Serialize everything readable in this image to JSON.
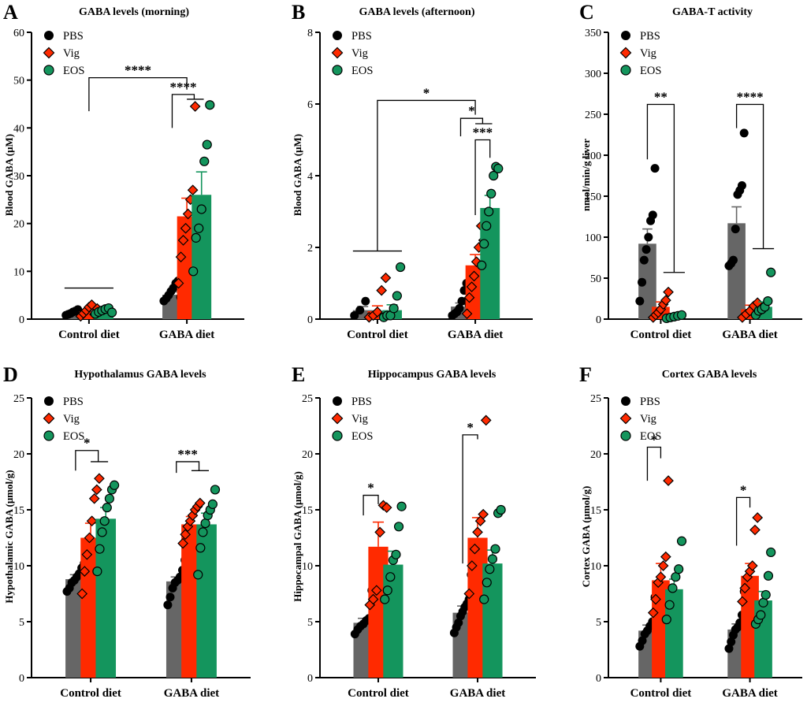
{
  "colors": {
    "PBS": "#666666",
    "Vig": "#ff2a00",
    "EOS": "#14955d",
    "PBS_marker": "#000000"
  },
  "chart_data": [
    {
      "letter": "A",
      "type": "bar",
      "title": "GABA levels (morning)",
      "ylabel": "Blood GABA (μM)",
      "ylim": [
        0,
        60
      ],
      "yticks": [
        "0",
        "10",
        "20",
        "30",
        "40",
        "50",
        "60"
      ],
      "categories": [
        "Control diet",
        "GABA diet"
      ],
      "legend": [
        {
          "label": "PBS",
          "marker": "circle",
          "key": "PBS"
        },
        {
          "label": "Vig",
          "marker": "diamond",
          "key": "Vig"
        },
        {
          "label": "EOS",
          "marker": "circle",
          "key": "EOS"
        }
      ],
      "series": [
        {
          "name": "PBS",
          "means": [
            1.2,
            5.1
          ],
          "sem": [
            0.3,
            0.6
          ],
          "points": [
            [
              0.8,
              1.0,
              1.2,
              1.5,
              1.7,
              2.0,
              1.3,
              0.9
            ],
            [
              3.8,
              4.3,
              5.0,
              5.8,
              6.5,
              7.5,
              8.0,
              4.6
            ]
          ]
        },
        {
          "name": "Vig",
          "means": [
            1.6,
            21.5
          ],
          "sem": [
            0.4,
            3.8
          ],
          "points": [
            [
              0.6,
              1.2,
              1.8,
              2.5,
              3.0,
              1.0,
              2.2
            ],
            [
              7.5,
              13,
              16.5,
              19,
              22,
              25,
              27,
              44.5
            ]
          ]
        },
        {
          "name": "EOS",
          "means": [
            1.7,
            26
          ],
          "sem": [
            0.3,
            4.8
          ],
          "points": [
            [
              1.1,
              1.5,
              1.8,
              2.1,
              2.3,
              1.4
            ],
            [
              10,
              17,
              19,
              23,
              33,
              36.5,
              44.8
            ]
          ]
        }
      ],
      "sig": [
        {
          "label": "****",
          "style": "group",
          "x1": 0,
          "x2": 1.0,
          "y": 50.5,
          "left_drop": 43.5,
          "right_drop": 48
        },
        {
          "label": "****",
          "style": "multi",
          "x1": 0.85,
          "x2": 1.0,
          "x3": 1.15,
          "y": 47,
          "left_drop": 40,
          "drop": 46
        },
        {
          "label": "",
          "style": "line",
          "x1": -0.25,
          "x2": 0.25,
          "y": 6.5
        }
      ]
    },
    {
      "letter": "B",
      "type": "bar",
      "title": "GABA levels (afternoon)",
      "ylabel": "Blood GABA (μM)",
      "ylim": [
        0,
        8
      ],
      "yticks": [
        "0",
        "2",
        "4",
        "6",
        "8"
      ],
      "categories": [
        "Control diet",
        "GABA diet"
      ],
      "legend": [
        {
          "label": "PBS",
          "marker": "circle",
          "key": "PBS"
        },
        {
          "label": "Vig",
          "marker": "diamond",
          "key": "Vig"
        },
        {
          "label": "EOS",
          "marker": "circle",
          "key": "EOS"
        }
      ],
      "series": [
        {
          "name": "PBS",
          "means": [
            0.25,
            0.35
          ],
          "sem": [
            0.1,
            0.1
          ],
          "points": [
            [
              0.1,
              0.25,
              0.5,
              0.1
            ],
            [
              0.1,
              0.15,
              0.2,
              0.3,
              0.5,
              0.8,
              1.0,
              0.4
            ]
          ]
        },
        {
          "name": "Vig",
          "means": [
            0.22,
            1.5
          ],
          "sem": [
            0.15,
            0.3
          ],
          "points": [
            [
              0.05,
              0.1,
              0.2,
              0.8,
              1.15
            ],
            [
              0.15,
              0.6,
              0.9,
              1.2,
              1.6,
              2.0,
              2.6,
              2.2
            ]
          ]
        },
        {
          "name": "EOS",
          "means": [
            0.25,
            3.1
          ],
          "sem": [
            0.15,
            0.35
          ],
          "points": [
            [
              0.05,
              0.1,
              0.1,
              0.3,
              0.65,
              1.45
            ],
            [
              1.5,
              2.1,
              2.6,
              3.0,
              3.5,
              4.0,
              4.25,
              4.2
            ]
          ]
        }
      ],
      "sig": [
        {
          "label": "*",
          "style": "group",
          "x1": 0,
          "x2": 1.0,
          "y": 6.1,
          "left_drop": 1.9,
          "right_drop": 5.7
        },
        {
          "label": "*",
          "style": "multi",
          "x1": 0.85,
          "x2": 1.0,
          "x3": 1.15,
          "y": 5.6,
          "left_drop": 5.1,
          "drop": 5.45
        },
        {
          "label": "***",
          "style": "bracket",
          "x1": 1.0,
          "x2": 1.15,
          "y": 5.0,
          "left_drop": 2.9,
          "right_drop": 4.5
        },
        {
          "label": "",
          "style": "line",
          "x1": -0.25,
          "x2": 0.25,
          "y": 1.9
        }
      ]
    },
    {
      "letter": "C",
      "type": "bar",
      "title": "GABA-T activity",
      "ylabel": "nmol/min/g liver",
      "ylim": [
        0,
        350
      ],
      "yticks": [
        "0",
        "50",
        "100",
        "150",
        "200",
        "250",
        "300",
        "350"
      ],
      "categories": [
        "Control diet",
        "GABA diet"
      ],
      "legend": [
        {
          "label": "PBS",
          "marker": "circle",
          "key": "PBS"
        },
        {
          "label": "Vig",
          "marker": "diamond",
          "key": "Vig"
        },
        {
          "label": "EOS",
          "marker": "circle",
          "key": "EOS"
        }
      ],
      "series": [
        {
          "name": "PBS",
          "means": [
            92,
            117
          ],
          "sem": [
            18,
            20
          ],
          "points": [
            [
              22,
              45,
              72,
              85,
              100,
              120,
              127,
              184
            ],
            [
              65,
              68,
              72,
              110,
              152,
              157,
              163,
              227
            ]
          ]
        },
        {
          "name": "Vig",
          "means": [
            15,
            12
          ],
          "sem": [
            6,
            5
          ],
          "points": [
            [
              2,
              5,
              8,
              12,
              18,
              23,
              33
            ],
            [
              2,
              6,
              10,
              16,
              20
            ]
          ]
        },
        {
          "name": "EOS",
          "means": [
            3,
            15
          ],
          "sem": [
            1,
            6
          ],
          "points": [
            [
              1,
              2,
              3,
              4,
              5
            ],
            [
              5,
              10,
              12,
              15,
              22,
              57
            ]
          ]
        }
      ],
      "sig": [
        {
          "label": "**",
          "style": "groupR",
          "x1": -0.15,
          "x2": 0.15,
          "y": 262,
          "left_drop": 195,
          "right_drop": 57,
          "tail": 0.12
        },
        {
          "label": "****",
          "style": "groupR",
          "x1": 0.85,
          "x2": 1.15,
          "y": 262,
          "left_drop": 233,
          "right_drop": 86,
          "tail": 0.12
        }
      ]
    },
    {
      "letter": "D",
      "type": "bar",
      "title": "Hypothalamus GABA levels",
      "ylabel": "Hypothalamic GABA (μmol/g)",
      "ylim": [
        0,
        25
      ],
      "yticks": [
        "0",
        "5",
        "10",
        "15",
        "20",
        "25"
      ],
      "categories": [
        "Control diet",
        "GABA diet"
      ],
      "legend": [
        {
          "label": "PBS",
          "marker": "circle",
          "key": "PBS"
        },
        {
          "label": "Vig",
          "marker": "diamond",
          "key": "Vig"
        },
        {
          "label": "EOS",
          "marker": "circle",
          "key": "EOS"
        }
      ],
      "series": [
        {
          "name": "PBS",
          "means": [
            8.8,
            8.6
          ],
          "sem": [
            0.4,
            0.4
          ],
          "points": [
            [
              7.7,
              8.0,
              8.5,
              8.7,
              9.0,
              9.3,
              9.8,
              10.2
            ],
            [
              6.5,
              7.2,
              8.0,
              8.5,
              8.7,
              9.0,
              9.6,
              10.5
            ]
          ]
        },
        {
          "name": "Vig",
          "means": [
            12.5,
            13.7
          ],
          "sem": [
            1.3,
            0.7
          ],
          "points": [
            [
              7.5,
              9.5,
              11.0,
              12.5,
              14.0,
              16.0,
              16.8,
              17.8
            ],
            [
              12.0,
              12.8,
              13.5,
              14.0,
              14.5,
              15.0,
              15.3,
              15.6
            ]
          ]
        },
        {
          "name": "EOS",
          "means": [
            14.2,
            13.7
          ],
          "sem": [
            1.0,
            1.0
          ],
          "points": [
            [
              9.5,
              11.5,
              13.0,
              14.0,
              15.2,
              16.0,
              16.8,
              17.2
            ],
            [
              9.2,
              11.6,
              13.0,
              13.8,
              14.5,
              15.0,
              15.5,
              16.8
            ]
          ]
        }
      ],
      "sig": [
        {
          "label": "*",
          "style": "multi",
          "x1": -0.15,
          "x2": 0.0,
          "x3": 0.15,
          "y": 20.3,
          "left_drop": 18.5,
          "drop": 19.3
        },
        {
          "label": "***",
          "style": "multi",
          "x1": 0.85,
          "x2": 1.0,
          "x3": 1.15,
          "y": 19.3,
          "left_drop": 18.3,
          "drop": 18.5
        }
      ]
    },
    {
      "letter": "E",
      "type": "bar",
      "title": "Hippocampus GABA levels",
      "ylabel": "Hippocampal GABA (μmol/g)",
      "ylim": [
        0,
        25
      ],
      "yticks": [
        "0",
        "5",
        "10",
        "15",
        "20",
        "25"
      ],
      "categories": [
        "Control diet",
        "GABA diet"
      ],
      "legend": [
        {
          "label": "PBS",
          "marker": "circle",
          "key": "PBS"
        },
        {
          "label": "Vig",
          "marker": "diamond",
          "key": "Vig"
        },
        {
          "label": "EOS",
          "marker": "circle",
          "key": "EOS"
        }
      ],
      "series": [
        {
          "name": "PBS",
          "means": [
            4.9,
            5.8
          ],
          "sem": [
            0.4,
            0.6
          ],
          "points": [
            [
              3.9,
              4.3,
              4.6,
              4.8,
              5.1,
              5.3,
              7.8
            ],
            [
              4.0,
              4.5,
              4.9,
              5.5,
              5.9,
              6.3,
              6.6,
              7.0,
              9.2
            ]
          ]
        },
        {
          "name": "Vig",
          "means": [
            11.7,
            12.5
          ],
          "sem": [
            2.2,
            1.8
          ],
          "points": [
            [
              6.5,
              7.0,
              7.8,
              13.0,
              15.4,
              15.2
            ],
            [
              7.5,
              10.0,
              11.5,
              13.0,
              14.0,
              14.6,
              23.0
            ]
          ]
        },
        {
          "name": "EOS",
          "means": [
            10.1,
            10.2
          ],
          "sem": [
            1.2,
            1.2
          ],
          "points": [
            [
              7.0,
              7.8,
              9.0,
              10.5,
              11.0,
              13.5,
              15.3
            ],
            [
              7.0,
              8.5,
              9.7,
              10.6,
              11.5,
              14.7,
              15.0
            ]
          ]
        }
      ],
      "sig": [
        {
          "label": "*",
          "style": "bracket",
          "x1": -0.15,
          "x2": 0.0,
          "y": 16.3,
          "left_drop": 14.5,
          "right_drop": 15.5
        },
        {
          "label": "*",
          "style": "bracket",
          "x1": 0.85,
          "x2": 1.0,
          "y": 21.7,
          "left_drop": 10.2,
          "right_drop": 21.3
        }
      ]
    },
    {
      "letter": "F",
      "type": "bar",
      "title": "Cortex GABA levels",
      "ylabel": "Cortex GABA (μmol/g)",
      "ylim": [
        0,
        25
      ],
      "yticks": [
        "0",
        "5",
        "10",
        "15",
        "20",
        "25"
      ],
      "categories": [
        "Control diet",
        "GABA diet"
      ],
      "legend": [
        {
          "label": "PBS",
          "marker": "circle",
          "key": "PBS"
        },
        {
          "label": "Vig",
          "marker": "diamond",
          "key": "Vig"
        },
        {
          "label": "EOS",
          "marker": "circle",
          "key": "EOS"
        }
      ],
      "series": [
        {
          "name": "PBS",
          "means": [
            4.2,
            4.3
          ],
          "sem": [
            0.5,
            0.5
          ],
          "points": [
            [
              2.8,
              3.3,
              3.9,
              4.2,
              4.6,
              5.0,
              7.2
            ],
            [
              2.6,
              3.2,
              3.8,
              4.3,
              4.5,
              4.9,
              5.6,
              7.7
            ]
          ]
        },
        {
          "name": "Vig",
          "means": [
            8.7,
            9.1
          ],
          "sem": [
            1.5,
            1.1
          ],
          "points": [
            [
              5.8,
              7.0,
              8.5,
              9.0,
              10.0,
              10.8,
              17.6
            ],
            [
              6.8,
              8.0,
              9.0,
              9.5,
              10.0,
              13.2,
              14.3
            ]
          ]
        },
        {
          "name": "EOS",
          "means": [
            7.9,
            6.9
          ],
          "sem": [
            0.9,
            0.8
          ],
          "points": [
            [
              5.2,
              6.5,
              8.0,
              9.0,
              9.7,
              12.2
            ],
            [
              4.8,
              5.2,
              5.6,
              6.7,
              7.4,
              9.1,
              11.2
            ]
          ]
        }
      ],
      "sig": [
        {
          "label": "*",
          "style": "bracket",
          "x1": -0.15,
          "x2": 0.0,
          "y": 20.6,
          "left_drop": 17.6,
          "right_drop": 19.6
        },
        {
          "label": "*",
          "style": "bracket",
          "x1": 0.85,
          "x2": 1.0,
          "y": 16.1,
          "left_drop": 11.8,
          "right_drop": 15.2
        }
      ]
    }
  ]
}
